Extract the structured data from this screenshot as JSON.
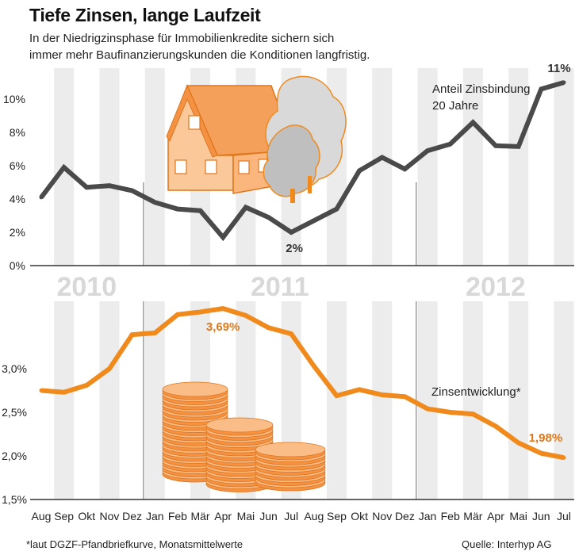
{
  "title": "Tiefe Zinsen, lange Laufzeit",
  "subtitle_lines": [
    "In der Niedrigzinsphase für Immobilienkredite sichern sich",
    "immer mehr Baufinanzierungskunden die Konditionen langfristig."
  ],
  "footnote": "*laut DGZF-Pfandbriefkurve, Monatsmittelwerte",
  "source": "Quelle: Interhyp AG",
  "colors": {
    "gray_line": "#4a4a4a",
    "orange_line": "#f08a1c",
    "stripe": "#ececec",
    "year_label": "#d8d8d8",
    "orange_label": "#e0761a"
  },
  "icons": [
    "house-illustration",
    "trees-illustration",
    "coin-stacks-illustration"
  ],
  "chart_data": [
    {
      "type": "line",
      "name": "top",
      "categories": [
        "Aug",
        "Sep",
        "Okt",
        "Nov",
        "Dez",
        "Jan",
        "Feb",
        "Mär",
        "Apr",
        "Mai",
        "Jun",
        "Jul",
        "Aug",
        "Sep",
        "Okt",
        "Nov",
        "Dez",
        "Jan",
        "Feb",
        "Mär",
        "Apr",
        "Mai",
        "Jun",
        "Jul"
      ],
      "series": [
        {
          "name": "Anteil Zinsbindung 20 Jahre",
          "values": [
            4.1,
            5.9,
            4.7,
            4.8,
            4.5,
            3.8,
            3.4,
            3.3,
            1.7,
            3.5,
            2.9,
            2.0,
            2.7,
            3.4,
            5.7,
            6.5,
            5.8,
            6.9,
            7.3,
            8.6,
            7.2,
            7.15,
            10.6,
            11.0
          ]
        }
      ],
      "ylim": [
        0,
        11
      ],
      "yticks": [
        "0%",
        "2%",
        "4%",
        "6%",
        "8%",
        "10%"
      ],
      "ytick_values": [
        0,
        2,
        4,
        6,
        8,
        10
      ],
      "series_label_lines": [
        "Anteil Zinsbindung",
        "20 Jahre"
      ],
      "annotations": [
        {
          "index": 11,
          "text": "2%"
        },
        {
          "index": 23,
          "text": "11%"
        }
      ],
      "year_labels": [
        {
          "text": "2010",
          "from": 0,
          "to": 4
        },
        {
          "text": "2011",
          "from": 5,
          "to": 16
        },
        {
          "text": "2012",
          "from": 17,
          "to": 23
        }
      ],
      "grid": false
    },
    {
      "type": "line",
      "name": "bottom",
      "categories": [
        "Aug",
        "Sep",
        "Okt",
        "Nov",
        "Dez",
        "Jan",
        "Feb",
        "Mär",
        "Apr",
        "Mai",
        "Jun",
        "Jul",
        "Aug",
        "Sep",
        "Okt",
        "Nov",
        "Dez",
        "Jan",
        "Feb",
        "Mär",
        "Apr",
        "Mai",
        "Jun",
        "Jul"
      ],
      "series": [
        {
          "name": "Zinsentwicklung*",
          "values": [
            2.75,
            2.73,
            2.81,
            3.0,
            3.39,
            3.41,
            3.62,
            3.65,
            3.69,
            3.61,
            3.47,
            3.4,
            3.03,
            2.69,
            2.76,
            2.7,
            2.68,
            2.54,
            2.5,
            2.48,
            2.34,
            2.15,
            2.03,
            1.98
          ]
        }
      ],
      "ylim": [
        1.5,
        3.9
      ],
      "yticks": [
        "1,5%",
        "2,0%",
        "2,5%",
        "3,0%"
      ],
      "ytick_values": [
        1.5,
        2.0,
        2.5,
        3.0
      ],
      "series_label": "Zinsentwicklung*",
      "annotations": [
        {
          "index": 8,
          "text": "3,69%"
        },
        {
          "index": 23,
          "text": "1,98%"
        }
      ],
      "grid": false
    }
  ]
}
